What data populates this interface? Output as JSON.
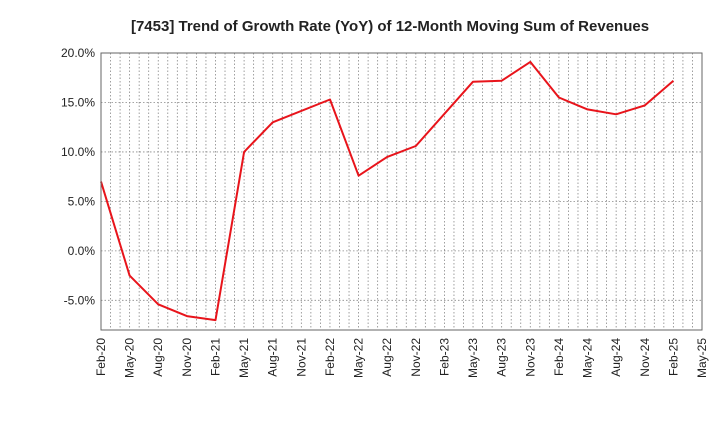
{
  "chart_data": {
    "type": "line",
    "title": "[7453]  Trend of Growth Rate (YoY) of 12-Month Moving Sum of Revenues",
    "xlabel": "",
    "ylabel": "",
    "ylim": [
      -8.0,
      20.0
    ],
    "y_ticks": [
      "20.0%",
      "15.0%",
      "10.0%",
      "5.0%",
      "0.0%",
      "-5.0%"
    ],
    "y_tick_values": [
      20.0,
      15.0,
      10.0,
      5.0,
      0.0,
      -5.0
    ],
    "x_ticks": [
      "Feb-20",
      "May-20",
      "Aug-20",
      "Nov-20",
      "Feb-21",
      "May-21",
      "Aug-21",
      "Nov-21",
      "Feb-22",
      "May-22",
      "Aug-22",
      "Nov-22",
      "Feb-23",
      "May-23",
      "Aug-23",
      "Nov-23",
      "Feb-24",
      "May-24",
      "Aug-24",
      "Nov-24",
      "Feb-25",
      "May-25"
    ],
    "grid": true,
    "series": [
      {
        "color": "#e8141b",
        "points": [
          {
            "x": "Feb-20",
            "y": 7.0
          },
          {
            "x": "May-20",
            "y": -2.5
          },
          {
            "x": "Aug-20",
            "y": -5.4
          },
          {
            "x": "Nov-20",
            "y": -6.6
          },
          {
            "x": "Feb-21",
            "y": -7.0
          },
          {
            "x": "May-21",
            "y": 10.0
          },
          {
            "x": "Aug-21",
            "y": 13.0
          },
          {
            "x": "Feb-22",
            "y": 15.3
          },
          {
            "x": "May-22",
            "y": 7.6
          },
          {
            "x": "Aug-22",
            "y": 9.5
          },
          {
            "x": "Nov-22",
            "y": 10.6
          },
          {
            "x": "May-23",
            "y": 17.1
          },
          {
            "x": "Aug-23",
            "y": 17.2
          },
          {
            "x": "Nov-23",
            "y": 19.1
          },
          {
            "x": "Feb-24",
            "y": 15.5
          },
          {
            "x": "May-24",
            "y": 14.3
          },
          {
            "x": "Aug-24",
            "y": 13.8
          },
          {
            "x": "Nov-24",
            "y": 14.7
          },
          {
            "x": "Feb-25",
            "y": 17.2
          }
        ]
      }
    ]
  }
}
